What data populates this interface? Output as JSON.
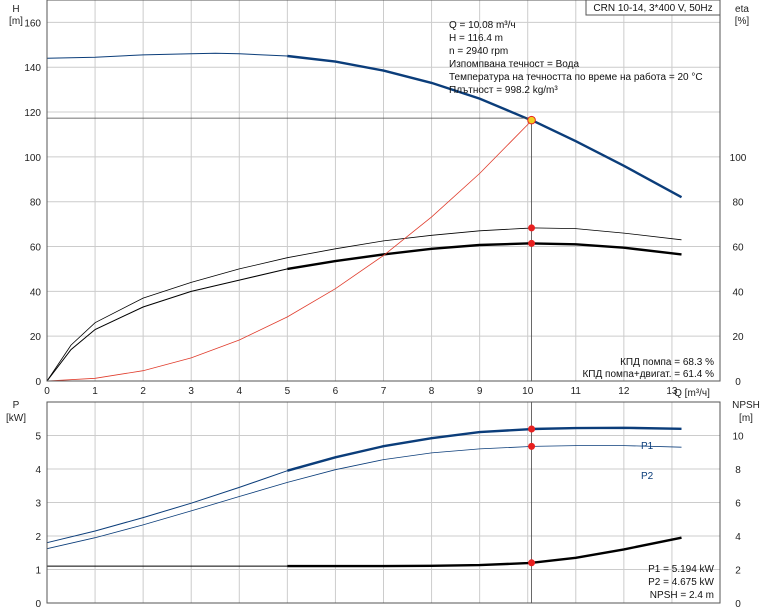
{
  "title_box": "CRN 10-14, 3*400 V, 50Hz",
  "info_lines": [
    "Q = 10.08 m³/ч",
    "H = 116.4 m",
    "n = 2940 rpm",
    "Изпомпвана течност = Вода",
    "Температура на течността по време на работа = 20 °C",
    "Плътност = 998.2 kg/m³"
  ],
  "eff_lines": [
    "КПД помпа = 68.3 %",
    "КПД помпа+двигат. = 61.4 %"
  ],
  "power_lines": [
    "P1 = 5.194 kW",
    "P2 = 4.675 kW",
    "NPSH = 2.4 m"
  ],
  "colors": {
    "head": "#0b3d7a",
    "system": "#e03c2c",
    "marker": "#e82020",
    "marker_yellow": "#f0d020",
    "grid": "#cccccc",
    "frame": "#555555"
  },
  "chart_data": [
    {
      "type": "line",
      "name": "head_and_efficiency",
      "xlabel": "Q [m³/ч]",
      "ylabel_left": [
        "H",
        "[m]"
      ],
      "ylabel_right": [
        "eta",
        "[%]"
      ],
      "xlim": [
        0,
        14
      ],
      "ylim_left": [
        0,
        170
      ],
      "ylim_right": [
        0,
        170
      ],
      "x_ticks": [
        0,
        1,
        2,
        3,
        4,
        5,
        6,
        7,
        8,
        9,
        10,
        11,
        12,
        13
      ],
      "y_ticks_left": [
        0,
        20,
        40,
        60,
        80,
        100,
        120,
        140,
        160
      ],
      "y_ticks_right": [
        0,
        20,
        40,
        60,
        80,
        100
      ],
      "grid": true,
      "operating_point": {
        "q": 10.08,
        "h": 116.4,
        "eta_pump": 68.3,
        "eta_total": 61.4
      },
      "series": [
        {
          "key": "head",
          "axis": "left",
          "style": "head",
          "x": [
            0,
            1,
            2,
            3,
            3.5,
            4,
            5,
            6,
            7,
            8,
            9,
            10,
            10.08,
            11,
            12,
            13.2
          ],
          "y": [
            144,
            144.5,
            145.5,
            146,
            146.2,
            146,
            145,
            142.5,
            138.5,
            133,
            126,
            117,
            116.4,
            107,
            96,
            82
          ]
        },
        {
          "key": "eta_pump",
          "axis": "right",
          "style": "thin",
          "x": [
            0,
            0.5,
            1,
            2,
            3,
            4,
            5,
            6,
            7,
            8,
            9,
            10,
            10.08,
            11,
            12,
            13.2
          ],
          "y": [
            0,
            16,
            26,
            37,
            44,
            50,
            55,
            59,
            62.5,
            65,
            67,
            68.2,
            68.3,
            68,
            66,
            63
          ]
        },
        {
          "key": "eta_total",
          "axis": "right",
          "style": "thick",
          "x": [
            0,
            0.5,
            1,
            2,
            3,
            4,
            5,
            6,
            7,
            8,
            9,
            10,
            10.08,
            11,
            12,
            13.2
          ],
          "y": [
            0,
            14,
            23,
            33,
            40,
            45,
            50,
            53.5,
            56.5,
            59,
            60.7,
            61.4,
            61.4,
            61,
            59.5,
            56.5
          ]
        },
        {
          "key": "system",
          "axis": "left",
          "style": "system",
          "x": [
            0,
            1,
            2,
            3,
            4,
            5,
            6,
            7,
            8,
            9,
            10,
            10.08
          ],
          "y": [
            0,
            1.2,
            4.6,
            10.3,
            18.3,
            28.6,
            41.2,
            56,
            73.2,
            92.6,
            114.4,
            116.4
          ]
        }
      ]
    },
    {
      "type": "line",
      "name": "power_and_npsh",
      "ylabel_left": [
        "P",
        "[kW]"
      ],
      "ylabel_right": [
        "NPSH",
        "[m]"
      ],
      "xlim": [
        0,
        14
      ],
      "ylim_left": [
        0,
        6
      ],
      "ylim_right": [
        0,
        12
      ],
      "y_ticks_left": [
        0,
        1,
        2,
        3,
        4,
        5
      ],
      "y_ticks_right": [
        0,
        2,
        4,
        6,
        8,
        10
      ],
      "grid": true,
      "series": [
        {
          "key": "P1",
          "name": "P1",
          "axis": "left",
          "style": "head",
          "x": [
            0,
            1,
            2,
            3,
            4,
            5,
            6,
            7,
            8,
            9,
            10,
            10.08,
            11,
            12,
            13.2
          ],
          "y": [
            1.8,
            2.15,
            2.55,
            2.98,
            3.45,
            3.95,
            4.35,
            4.68,
            4.92,
            5.1,
            5.185,
            5.194,
            5.22,
            5.23,
            5.2
          ]
        },
        {
          "key": "P2",
          "name": "P2",
          "axis": "left",
          "style": "thinblue",
          "x": [
            0,
            1,
            2,
            3,
            4,
            5,
            6,
            7,
            8,
            9,
            10,
            10.08,
            11,
            12,
            13.2
          ],
          "y": [
            1.62,
            1.95,
            2.33,
            2.75,
            3.18,
            3.6,
            3.98,
            4.28,
            4.48,
            4.6,
            4.67,
            4.675,
            4.7,
            4.7,
            4.65
          ]
        },
        {
          "key": "NPSH",
          "axis": "right",
          "style": "thick",
          "x": [
            0,
            1,
            2,
            3,
            4,
            5,
            6,
            7,
            8,
            9,
            10,
            10.08,
            11,
            12,
            13.2
          ],
          "y": [
            2.2,
            2.2,
            2.2,
            2.2,
            2.2,
            2.2,
            2.2,
            2.2,
            2.22,
            2.26,
            2.38,
            2.4,
            2.7,
            3.2,
            3.9
          ]
        }
      ],
      "markers": [
        {
          "series": "P1",
          "x": 10.08,
          "y": 5.194
        },
        {
          "series": "P2",
          "x": 10.08,
          "y": 4.675
        },
        {
          "series": "NPSH",
          "x": 10.08,
          "y": 2.4
        }
      ]
    }
  ]
}
